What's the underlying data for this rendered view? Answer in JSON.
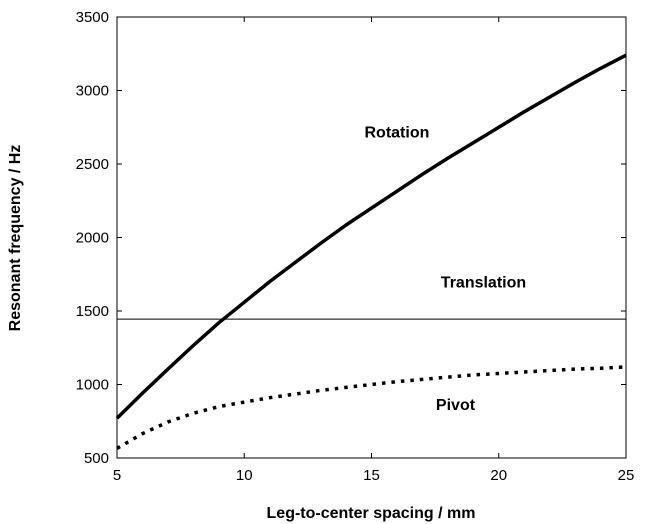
{
  "chart_data": {
    "type": "line",
    "xlabel": "Leg-to-center spacing  / mm",
    "ylabel": "Resonant frequency / Hz",
    "xlim": [
      5,
      25
    ],
    "ylim": [
      500,
      3500
    ],
    "xticks": [
      5,
      10,
      15,
      20,
      25
    ],
    "yticks": [
      500,
      1000,
      1500,
      2000,
      2500,
      3000,
      3500
    ],
    "grid": false,
    "series": [
      {
        "style": "solid",
        "x": [
          5,
          6,
          7,
          8,
          9,
          10,
          11,
          12,
          13,
          14,
          15,
          16,
          17,
          18,
          19,
          20,
          21,
          22,
          23,
          24,
          25
        ],
        "y": [
          770,
          940,
          1105,
          1265,
          1420,
          1560,
          1700,
          1830,
          1960,
          2085,
          2200,
          2315,
          2430,
          2540,
          2645,
          2750,
          2855,
          2955,
          3055,
          3150,
          3240
        ]
      },
      {
        "style": "dotted",
        "x": [
          5,
          6,
          7,
          8,
          9,
          10,
          11,
          12,
          13,
          14,
          15,
          16,
          17,
          18,
          19,
          20,
          21,
          22,
          23,
          24,
          25
        ],
        "y": [
          565,
          665,
          745,
          805,
          850,
          880,
          910,
          935,
          960,
          980,
          1000,
          1020,
          1035,
          1050,
          1065,
          1075,
          1085,
          1095,
          1105,
          1110,
          1120
        ]
      },
      {
        "style": "thin",
        "x": [
          5,
          25
        ],
        "y": [
          1445,
          1445
        ]
      }
    ],
    "annotations": [
      {
        "text": "Rotation",
        "x": 16,
        "y": 2680
      },
      {
        "text": "Translation",
        "x": 19.4,
        "y": 1660
      },
      {
        "text": "Pivot",
        "x": 18.3,
        "y": 825
      }
    ]
  }
}
